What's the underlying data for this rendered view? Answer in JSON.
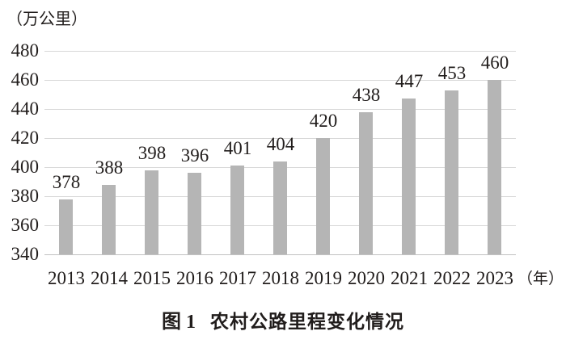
{
  "chart_data": {
    "type": "bar",
    "caption_label": "图 1",
    "caption_text": "农村公路里程变化情况",
    "unit_label": "（万公里）",
    "x_unit_label": "（年）",
    "categories": [
      "2013",
      "2014",
      "2015",
      "2016",
      "2017",
      "2018",
      "2019",
      "2020",
      "2021",
      "2022",
      "2023"
    ],
    "values": [
      378,
      388,
      398,
      396,
      401,
      404,
      420,
      438,
      447,
      453,
      460
    ],
    "yticks": [
      340,
      360,
      380,
      400,
      420,
      440,
      460,
      480
    ],
    "ylim": [
      340,
      480
    ],
    "grid": true,
    "legend": "none",
    "bar_color": "#b5b5b5",
    "gridline_color": "#d8d8d8",
    "baseline_color": "#c2c2c2",
    "text_color": "#211d1c"
  }
}
